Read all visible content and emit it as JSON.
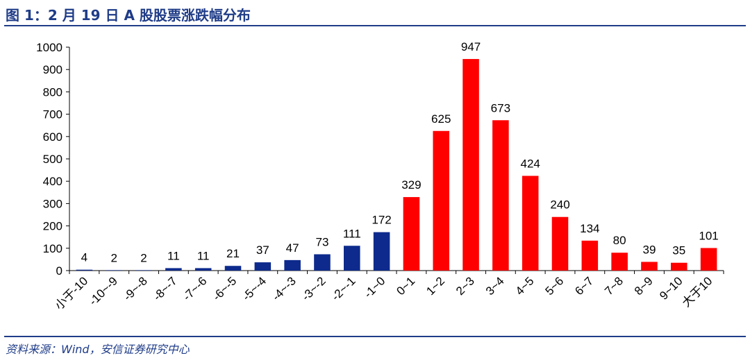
{
  "title": "图 1：2 月 19 日 A 股股票涨跌幅分布",
  "source": "资料来源：Wind，安信证券研究中心",
  "colors": {
    "title": "#1f3c88",
    "negative": "#0d2a8c",
    "positive": "#ff0000",
    "axis": "#000000",
    "text": "#000000"
  },
  "chart_data": {
    "type": "bar",
    "title": "",
    "xlabel": "",
    "ylabel": "",
    "ylim": [
      0,
      1000
    ],
    "yticks": [
      0,
      100,
      200,
      300,
      400,
      500,
      600,
      700,
      800,
      900,
      1000
    ],
    "categories": [
      "小于-10",
      "-10~-9",
      "-9~-8",
      "-8~-7",
      "-7~-6",
      "-6~-5",
      "-5~-4",
      "-4~-3",
      "-3~-2",
      "-2~-1",
      "-1~0",
      "0~1",
      "1~2",
      "2~3",
      "3~4",
      "4~5",
      "5~6",
      "6~7",
      "7~8",
      "8~9",
      "9~10",
      "大于10"
    ],
    "values": [
      4,
      2,
      2,
      11,
      11,
      21,
      37,
      47,
      73,
      111,
      172,
      329,
      625,
      947,
      673,
      424,
      240,
      134,
      80,
      39,
      35,
      101
    ],
    "series_colors": [
      "#0d2a8c",
      "#0d2a8c",
      "#0d2a8c",
      "#0d2a8c",
      "#0d2a8c",
      "#0d2a8c",
      "#0d2a8c",
      "#0d2a8c",
      "#0d2a8c",
      "#0d2a8c",
      "#0d2a8c",
      "#ff0000",
      "#ff0000",
      "#ff0000",
      "#ff0000",
      "#ff0000",
      "#ff0000",
      "#ff0000",
      "#ff0000",
      "#ff0000",
      "#ff0000",
      "#ff0000"
    ],
    "grid": false,
    "legend": "none",
    "data_labels": true
  }
}
